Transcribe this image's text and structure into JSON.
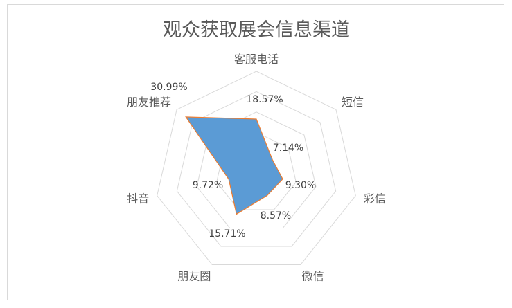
{
  "chart_data": {
    "type": "radar",
    "title": "观众获取展会信息渠道",
    "categories": [
      "客服电话",
      "短信",
      "彩信",
      "微信",
      "朋友圈",
      "抖音",
      "朋友推荐"
    ],
    "values": [
      18.57,
      7.14,
      9.3,
      8.57,
      15.71,
      9.72,
      30.99
    ],
    "data_labels": [
      "18.57%",
      "7.14%",
      "9.30%",
      "8.57%",
      "15.71%",
      "9.72%",
      "30.99%"
    ],
    "rlim": [
      0,
      35
    ],
    "r_step": 7,
    "grid": true,
    "legend": "none",
    "colors": {
      "fill": "#5b9bd5",
      "stroke": "#ed7d31",
      "grid": "#d9d9d9"
    }
  }
}
